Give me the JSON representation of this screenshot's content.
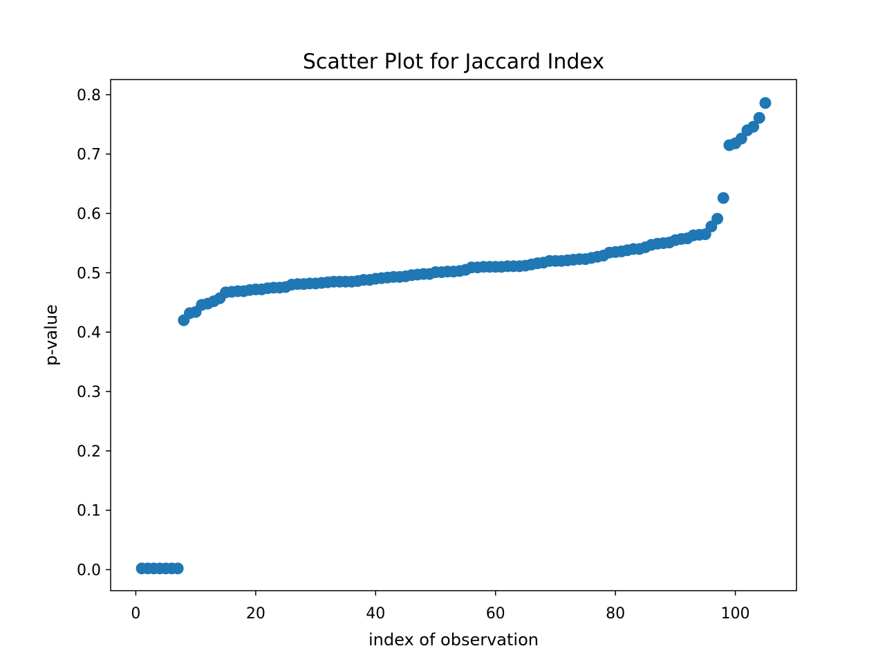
{
  "chart_data": {
    "type": "scatter",
    "title": "Scatter Plot for Jaccard Index",
    "xlabel": "index of observation",
    "ylabel": "p-value",
    "xlim": [
      -4.2,
      110.2
    ],
    "ylim": [
      -0.0355,
      0.8255
    ],
    "xticks": [
      0,
      20,
      40,
      60,
      80,
      100
    ],
    "yticks": [
      0.0,
      0.1,
      0.2,
      0.3,
      0.4,
      0.5,
      0.6,
      0.7,
      0.8
    ],
    "xtick_labels": [
      "0",
      "20",
      "40",
      "60",
      "80",
      "100"
    ],
    "ytick_labels": [
      "0.0",
      "0.1",
      "0.2",
      "0.3",
      "0.4",
      "0.5",
      "0.6",
      "0.7",
      "0.8"
    ],
    "grid": false,
    "color": "#1f77b4",
    "x": [
      1,
      2,
      3,
      4,
      5,
      6,
      7,
      8,
      9,
      10,
      11,
      12,
      13,
      14,
      15,
      16,
      17,
      18,
      19,
      20,
      21,
      22,
      23,
      24,
      25,
      26,
      27,
      28,
      29,
      30,
      31,
      32,
      33,
      34,
      35,
      36,
      37,
      38,
      39,
      40,
      41,
      42,
      43,
      44,
      45,
      46,
      47,
      48,
      49,
      50,
      51,
      52,
      53,
      54,
      55,
      56,
      57,
      58,
      59,
      60,
      61,
      62,
      63,
      64,
      65,
      66,
      67,
      68,
      69,
      70,
      71,
      72,
      73,
      74,
      75,
      76,
      77,
      78,
      79,
      80,
      81,
      82,
      83,
      84,
      85,
      86,
      87,
      88,
      89,
      90,
      91,
      92,
      93,
      94,
      95,
      96,
      97,
      98,
      99,
      100,
      101,
      102,
      103,
      104,
      105
    ],
    "y": [
      0.002,
      0.002,
      0.002,
      0.002,
      0.002,
      0.002,
      0.002,
      0.42,
      0.432,
      0.434,
      0.446,
      0.448,
      0.452,
      0.457,
      0.467,
      0.468,
      0.469,
      0.469,
      0.471,
      0.472,
      0.472,
      0.474,
      0.475,
      0.475,
      0.476,
      0.48,
      0.481,
      0.481,
      0.482,
      0.482,
      0.483,
      0.484,
      0.485,
      0.485,
      0.485,
      0.485,
      0.486,
      0.488,
      0.488,
      0.49,
      0.491,
      0.492,
      0.493,
      0.493,
      0.494,
      0.496,
      0.497,
      0.498,
      0.498,
      0.501,
      0.501,
      0.502,
      0.502,
      0.503,
      0.505,
      0.509,
      0.509,
      0.51,
      0.51,
      0.51,
      0.51,
      0.511,
      0.511,
      0.511,
      0.512,
      0.514,
      0.516,
      0.517,
      0.52,
      0.52,
      0.52,
      0.521,
      0.522,
      0.523,
      0.523,
      0.525,
      0.527,
      0.529,
      0.534,
      0.535,
      0.536,
      0.538,
      0.54,
      0.54,
      0.543,
      0.547,
      0.549,
      0.55,
      0.551,
      0.555,
      0.557,
      0.558,
      0.563,
      0.564,
      0.565,
      0.578,
      0.591,
      0.626,
      0.715,
      0.718,
      0.726,
      0.74,
      0.746,
      0.761,
      0.786
    ]
  }
}
